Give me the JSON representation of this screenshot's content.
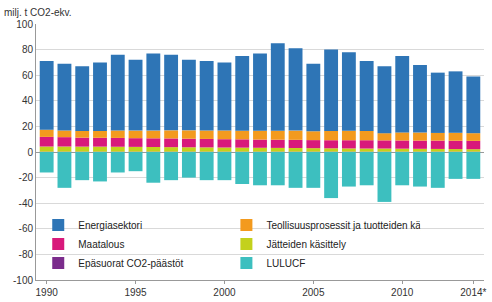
{
  "chart_data": {
    "type": "bar",
    "stacked": true,
    "y_label": "milj. t CO2-ekv.",
    "categories": [
      "1990",
      null,
      null,
      null,
      null,
      "1995",
      null,
      null,
      null,
      null,
      "2000",
      null,
      null,
      null,
      null,
      "2005",
      null,
      null,
      null,
      null,
      "2010",
      null,
      null,
      null,
      "2014*"
    ],
    "series": [
      {
        "name": "Energiasektori",
        "color": "#2e75b6",
        "values": [
          53.6,
          52.2,
          50.5,
          53.5,
          59.2,
          55.3,
          60.3,
          59.1,
          55.1,
          54.2,
          53.2,
          58.4,
          60.4,
          68.4,
          64.3,
          52.8,
          63.5,
          61.4,
          54.5,
          52.3,
          59.7,
          52.8,
          47.1,
          48.0,
          44.3
        ]
      },
      {
        "name": "Teollisuusprosessit ja tuotteiden käyttö",
        "color": "#f39a1e",
        "values": [
          5.6,
          5.2,
          5.3,
          5.4,
          5.8,
          5.9,
          6.0,
          6.3,
          6.5,
          6.6,
          6.8,
          6.7,
          6.9,
          7.0,
          7.2,
          6.9,
          7.3,
          7.4,
          7.3,
          5.6,
          6.3,
          6.3,
          6.0,
          6.2,
          6.0
        ]
      },
      {
        "name": "Maatalous",
        "color": "#d8197b",
        "values": [
          7.5,
          7.3,
          7.0,
          6.9,
          6.9,
          6.8,
          6.8,
          6.8,
          6.7,
          6.6,
          6.5,
          6.5,
          6.4,
          6.4,
          6.4,
          6.3,
          6.3,
          6.4,
          6.5,
          6.4,
          6.4,
          6.4,
          6.5,
          6.5,
          6.5
        ]
      },
      {
        "name": "Jätteiden käsittely",
        "color": "#c3d11c",
        "values": [
          4.0,
          4.0,
          3.9,
          3.9,
          3.8,
          3.7,
          3.6,
          3.5,
          3.4,
          3.3,
          3.2,
          3.1,
          3.0,
          2.9,
          2.8,
          2.7,
          2.6,
          2.5,
          2.4,
          2.4,
          2.3,
          2.2,
          2.1,
          2.0,
          1.9
        ]
      },
      {
        "name": "Epäsuorat CO2-päästöt",
        "color": "#7b2c8c",
        "values": [
          0.3,
          0.3,
          0.3,
          0.3,
          0.3,
          0.3,
          0.3,
          0.3,
          0.3,
          0.3,
          0.3,
          0.3,
          0.3,
          0.3,
          0.3,
          0.3,
          0.3,
          0.3,
          0.3,
          0.3,
          0.3,
          0.3,
          0.3,
          0.3,
          0.3
        ]
      },
      {
        "name": "LULUCF",
        "color": "#3dbfbf",
        "values": [
          -16,
          -28,
          -22,
          -23,
          -16,
          -15,
          -24,
          -22,
          -20,
          -22,
          -22,
          -25,
          -26,
          -26,
          -28,
          -28,
          -36,
          -27,
          -26,
          -39,
          -26,
          -27,
          -28,
          -21,
          -21
        ]
      }
    ],
    "ylim": [
      -100,
      100
    ],
    "yticks": [
      -100,
      -80,
      -60,
      -40,
      -20,
      0,
      20,
      40,
      60,
      80,
      100
    ],
    "grid": true,
    "legend": "bottom left"
  }
}
